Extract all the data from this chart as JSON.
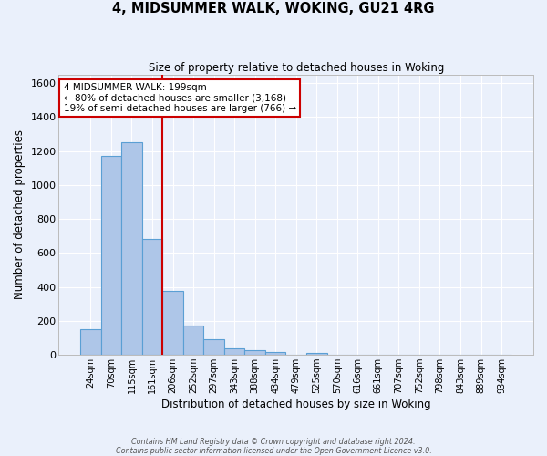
{
  "title": "4, MIDSUMMER WALK, WOKING, GU21 4RG",
  "subtitle": "Size of property relative to detached houses in Woking",
  "xlabel": "Distribution of detached houses by size in Woking",
  "ylabel": "Number of detached properties",
  "categories": [
    "24sqm",
    "70sqm",
    "115sqm",
    "161sqm",
    "206sqm",
    "252sqm",
    "297sqm",
    "343sqm",
    "388sqm",
    "434sqm",
    "479sqm",
    "525sqm",
    "570sqm",
    "616sqm",
    "661sqm",
    "707sqm",
    "752sqm",
    "798sqm",
    "843sqm",
    "889sqm",
    "934sqm"
  ],
  "values": [
    150,
    1170,
    1250,
    680,
    375,
    170,
    90,
    38,
    28,
    18,
    0,
    13,
    0,
    0,
    0,
    0,
    0,
    0,
    0,
    0,
    0
  ],
  "bar_color": "#aec6e8",
  "bar_edge_color": "#5a9fd4",
  "background_color": "#eaf0fb",
  "grid_color": "#ffffff",
  "red_line_index": 4,
  "annotation_text": "4 MIDSUMMER WALK: 199sqm\n← 80% of detached houses are smaller (3,168)\n19% of semi-detached houses are larger (766) →",
  "annotation_box_color": "#ffffff",
  "annotation_box_edge": "#cc0000",
  "footer_line1": "Contains HM Land Registry data © Crown copyright and database right 2024.",
  "footer_line2": "Contains public sector information licensed under the Open Government Licence v3.0.",
  "ylim": [
    0,
    1650
  ],
  "yticks": [
    0,
    200,
    400,
    600,
    800,
    1000,
    1200,
    1400,
    1600
  ]
}
